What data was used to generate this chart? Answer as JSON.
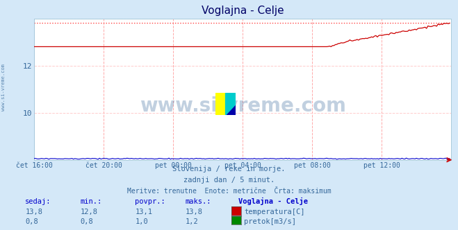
{
  "title": "Voglajna - Celje",
  "bg_color": "#d4e8f8",
  "plot_bg_color": "#ffffff",
  "grid_color_v": "#ffaaaa",
  "grid_color_h": "#ffcccc",
  "x_labels": [
    "čet 16:00",
    "čet 20:00",
    "pet 00:00",
    "pet 04:00",
    "pet 08:00",
    "pet 12:00"
  ],
  "x_ticks": [
    0,
    48,
    96,
    144,
    192,
    240
  ],
  "x_max": 288,
  "y_min": 8.0,
  "y_max": 14.0,
  "y_ticks": [
    10,
    12
  ],
  "temp_color": "#cc0000",
  "flow_color": "#008800",
  "blue_color": "#0000cc",
  "max_temp_dotted": "#ff4444",
  "max_flow_dotted": "#00cc00",
  "temp_min": 12.8,
  "temp_max": 13.8,
  "temp_avg": 13.1,
  "temp_now": 13.8,
  "flow_min": 0.8,
  "flow_max": 1.2,
  "flow_avg": 1.0,
  "flow_now": 0.8,
  "footer_line1": "Slovenija / reke in morje.",
  "footer_line2": "zadnji dan / 5 minut.",
  "footer_line3": "Meritve: trenutne  Enote: metrične  Črta: maksimum",
  "col_headers": [
    "sedaj:",
    "min.:",
    "povpr.:",
    "maks.:",
    "Voglajna - Celje"
  ],
  "table_row1": [
    "13,8",
    "12,8",
    "13,1",
    "13,8"
  ],
  "table_row2": [
    "0,8",
    "0,8",
    "1,0",
    "1,2"
  ],
  "legend_label1": "temperatura[C]",
  "legend_label2": "pretok[m3/s]",
  "watermark": "www.si-vreme.com",
  "side_label": "www.si-vreme.com"
}
